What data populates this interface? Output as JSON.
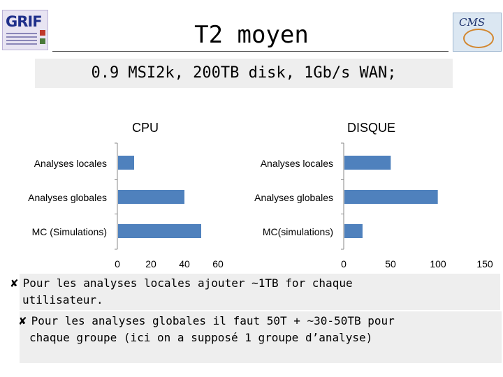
{
  "header": {
    "title": "T2 moyen",
    "subtitle": "0.9 MSI2k, 200TB disk, 1Gb/s WAN;",
    "logo_left_text": "GRIF",
    "logo_right_text": "CMS"
  },
  "chart_data": [
    {
      "type": "bar",
      "orientation": "horizontal",
      "title": "CPU",
      "categories": [
        "Analyses locales",
        "Analyses globales",
        "MC (Simulations)"
      ],
      "values": [
        10,
        40,
        50
      ],
      "xlim": [
        0,
        60
      ],
      "xticks": [
        "0",
        "20",
        "40",
        "60"
      ],
      "color": "#4f81bd"
    },
    {
      "type": "bar",
      "orientation": "horizontal",
      "title": "DISQUE",
      "categories": [
        "Analyses locales",
        "Analyses globales",
        "MC(simulations)"
      ],
      "values": [
        50,
        100,
        20
      ],
      "xlim": [
        0,
        150
      ],
      "xticks": [
        "0",
        "50",
        "100",
        "150"
      ],
      "color": "#4f81bd"
    }
  ],
  "notes": [
    {
      "bullet": "✘",
      "line1": "Pour les analyses locales ajouter ~1TB for chaque",
      "line2": "utilisateur."
    },
    {
      "bullet": "✘",
      "line1": "Pour les analyses globales il faut 50T + ~30-50TB pour",
      "line2": "chaque groupe (ici on a supposé 1 groupe d’analyse)"
    }
  ]
}
